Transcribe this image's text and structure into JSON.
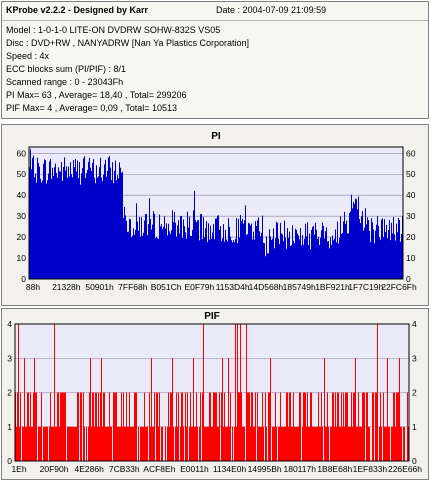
{
  "info": {
    "title": "KProbe v2.2.2 - Designed by Karr",
    "date": "Date : 2004-07-09 21:09:59",
    "lines": [
      "Model : 1-0-1-0 LITE-ON DVDRW SOHW-832S  VS05",
      "Disc : DVD+RW , NANYADRW [Nan Ya Plastics Corporation]",
      "Speed : 4x",
      "ECC blocks sum (PI/PIF) : 8/1",
      "Scanned range : 0 - 23043Fh",
      "PI Max= 63 , Average= 18,40 , Total= 299206",
      "PIF Max= 4 , Average= 0,09 , Total= 10513"
    ]
  },
  "colors": {
    "pi_series": "#0000cc",
    "pif_series": "#ff0000",
    "plot_bg": "#eaeaf8",
    "grid": "#8a8aa0"
  },
  "chart_data": [
    {
      "type": "area",
      "title": "PI",
      "ylim": [
        0,
        63
      ],
      "yticks": [
        0,
        10,
        20,
        30,
        40,
        50,
        60
      ],
      "xticks": [
        "88h",
        "21328h",
        "50901h",
        "7FF68h",
        "B051Ch",
        "E0F79h",
        "1153D4h",
        "14D568h",
        "185749h",
        "1BF921h",
        "1F7C19h",
        "22FC6Fh"
      ],
      "segments": [
        {
          "from": 0.0,
          "to": 0.25,
          "base": 52
        },
        {
          "from": 0.25,
          "to": 0.26,
          "base": 33
        },
        {
          "from": 0.26,
          "to": 0.45,
          "base": 26
        },
        {
          "from": 0.45,
          "to": 0.63,
          "base": 24
        },
        {
          "from": 0.63,
          "to": 0.65,
          "base": 17
        },
        {
          "from": 0.65,
          "to": 0.83,
          "base": 21
        },
        {
          "from": 0.83,
          "to": 0.91,
          "base": 28
        },
        {
          "from": 0.91,
          "to": 1.0,
          "base": 24
        }
      ],
      "max": 63,
      "grid": true
    },
    {
      "type": "bar",
      "title": "PIF",
      "ylim": [
        0,
        4
      ],
      "yticks": [
        0,
        1,
        2,
        3,
        4
      ],
      "xticks": [
        "1Eh",
        "20F90h",
        "4E286h",
        "7CB33h",
        "ACF8Eh",
        "E0011h",
        "1134E0h",
        "14995Bh",
        "180117h",
        "1B8E68h",
        "1EF833h",
        "226E66h"
      ],
      "max": 4,
      "grid": true
    }
  ]
}
